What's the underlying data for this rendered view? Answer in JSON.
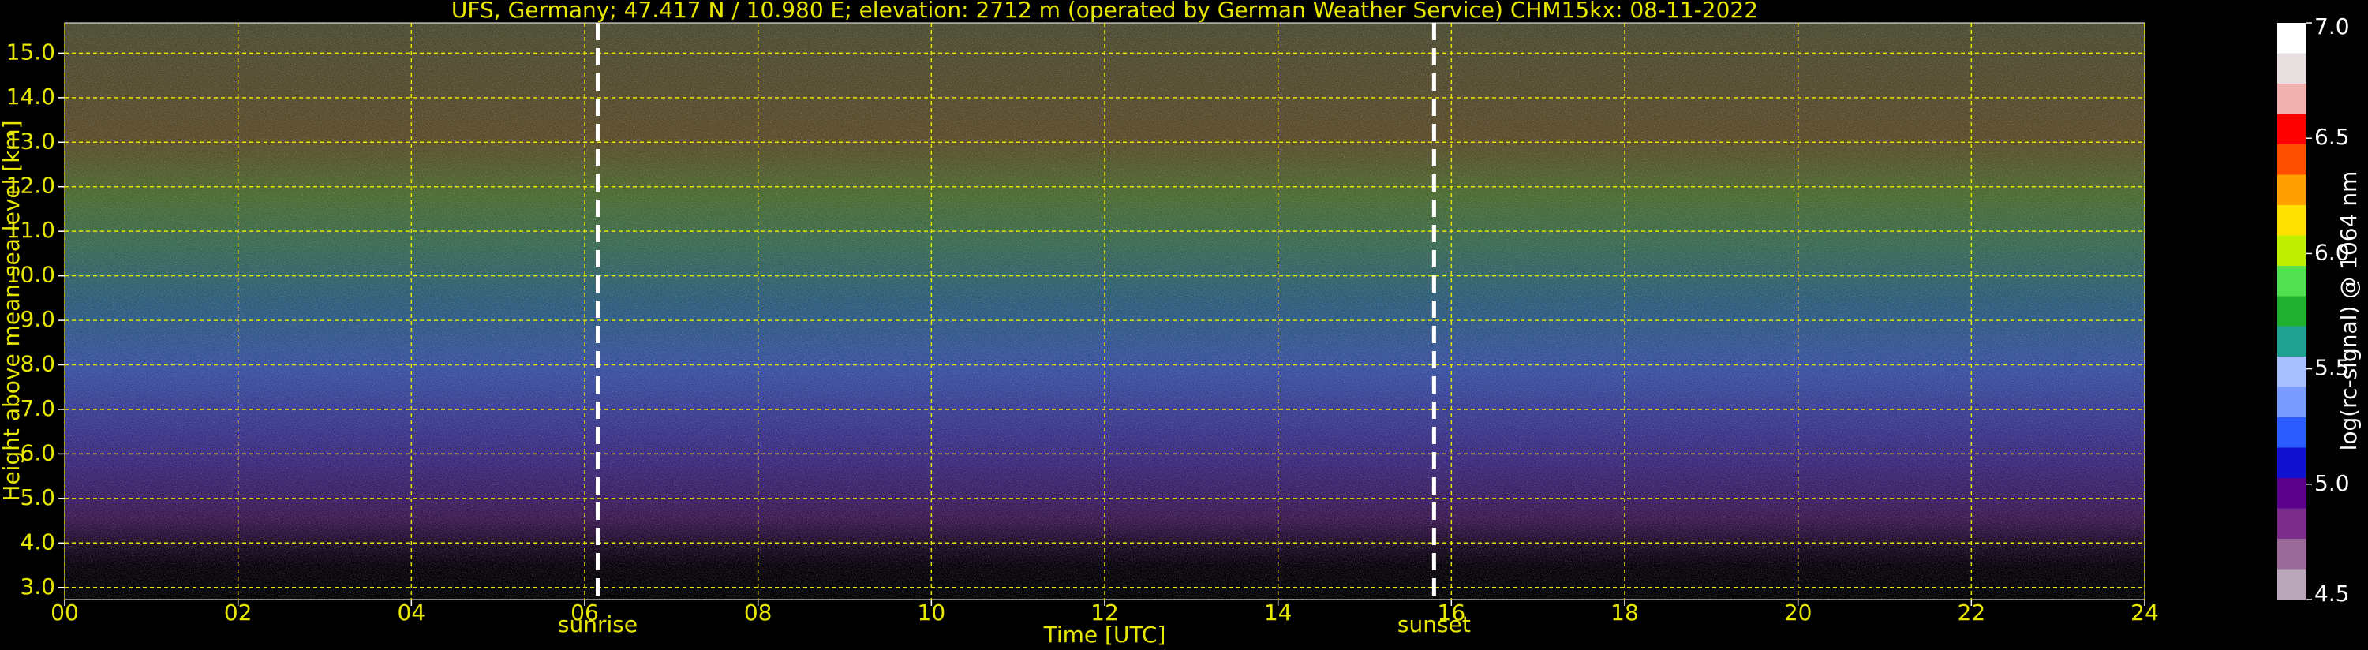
{
  "chart_data": {
    "type": "heatmap",
    "title": "UFS, Germany; 47.417 N / 10.980 E; elevation: 2712 m  (operated by German Weather Service)    CHM15kx: 08-11-2022",
    "xlabel": "Time [UTC]",
    "ylabel": "Height above mean sea level [km]",
    "xlim": [
      0,
      24
    ],
    "xticks": [
      {
        "value": 0,
        "label": "00"
      },
      {
        "value": 2,
        "label": "02"
      },
      {
        "value": 4,
        "label": "04"
      },
      {
        "value": 6,
        "label": "06"
      },
      {
        "value": 8,
        "label": "08"
      },
      {
        "value": 10,
        "label": "10"
      },
      {
        "value": 12,
        "label": "12"
      },
      {
        "value": 14,
        "label": "14"
      },
      {
        "value": 16,
        "label": "16"
      },
      {
        "value": 18,
        "label": "18"
      },
      {
        "value": 20,
        "label": "20"
      },
      {
        "value": 22,
        "label": "22"
      },
      {
        "value": 24,
        "label": "24"
      }
    ],
    "ylim": [
      2.73,
      15.68
    ],
    "yticks": [
      {
        "value": 3,
        "label": "3.0"
      },
      {
        "value": 4,
        "label": "4.0"
      },
      {
        "value": 5,
        "label": "5.0"
      },
      {
        "value": 6,
        "label": "6.0"
      },
      {
        "value": 7,
        "label": "7.0"
      },
      {
        "value": 8,
        "label": "8.0"
      },
      {
        "value": 9,
        "label": "9.0"
      },
      {
        "value": 10,
        "label": "10.0"
      },
      {
        "value": 11,
        "label": "11.0"
      },
      {
        "value": 12,
        "label": "12.0"
      },
      {
        "value": 13,
        "label": "13.0"
      },
      {
        "value": 14,
        "label": "14.0"
      },
      {
        "value": 15,
        "label": "15.0"
      }
    ],
    "grid": true,
    "grid_color": "#e6e600",
    "annotations": [
      {
        "label": "sunrise",
        "x": 6.15
      },
      {
        "label": "sunset",
        "x": 15.8
      }
    ],
    "colorbar": {
      "label": "log(rc-signal) @ 1064 nm",
      "lim": [
        4.5,
        7.0
      ],
      "ticks": [
        {
          "value": 4.5,
          "label": "4.5"
        },
        {
          "value": 5,
          "label": "5.0"
        },
        {
          "value": 5.5,
          "label": "5.5"
        },
        {
          "value": 6,
          "label": "6.0"
        },
        {
          "value": 6.5,
          "label": "6.5"
        },
        {
          "value": 7,
          "label": "7.0"
        }
      ],
      "colors": [
        "#b9a7b9",
        "#9a6a9a",
        "#7a2d8a",
        "#5a008a",
        "#1010d0",
        "#2a5cff",
        "#7a9cff",
        "#a8c0ff",
        "#20a090",
        "#20b030",
        "#50e050",
        "#c0f000",
        "#ffe000",
        "#ffa000",
        "#ff5000",
        "#ff0000",
        "#f0b0b0",
        "#e8e0e0",
        "#ffffff"
      ]
    }
  }
}
